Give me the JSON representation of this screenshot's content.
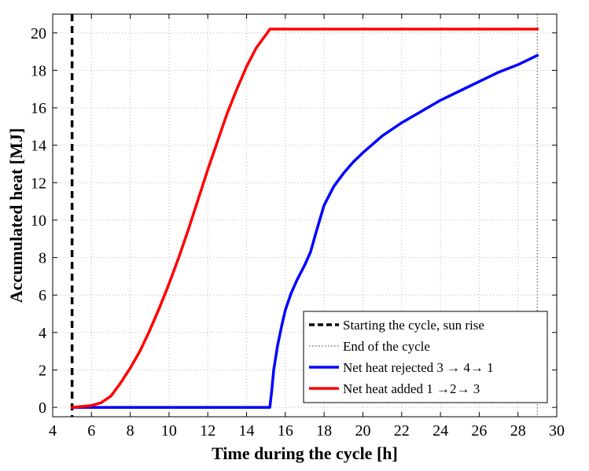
{
  "chart_data": {
    "type": "line",
    "title": "",
    "xlabel": "Time during the cycle  [h]",
    "ylabel": "Accumulated heat  [MJ]",
    "xlim": [
      4,
      30
    ],
    "ylim": [
      -0.5,
      21
    ],
    "xticks": [
      4,
      6,
      8,
      10,
      12,
      14,
      16,
      18,
      20,
      22,
      24,
      26,
      28,
      30
    ],
    "yticks": [
      0,
      2,
      4,
      6,
      8,
      10,
      12,
      14,
      16,
      18,
      20
    ],
    "grid": true,
    "legend_position": "bottom-right",
    "vlines": [
      {
        "name": "Starting the cycle, sun rise",
        "x": 5,
        "color": "#000000",
        "style": "dashed"
      },
      {
        "name": "End of the cycle",
        "x": 29,
        "color": "#777777",
        "style": "dotted"
      }
    ],
    "series": [
      {
        "name": "Net heat rejected  3 → 4→ 1",
        "color": "#0000ff",
        "x": [
          5,
          6,
          8,
          10,
          12,
          14,
          15.2,
          15.3,
          15.4,
          15.6,
          15.8,
          16,
          16.3,
          16.6,
          17,
          17.3,
          17.6,
          18,
          18.5,
          19,
          19.5,
          20,
          21,
          22,
          23,
          24,
          25,
          26,
          27,
          28,
          29
        ],
        "y": [
          0,
          0,
          0,
          0,
          0,
          0,
          0,
          0.9,
          2.0,
          3.3,
          4.3,
          5.2,
          6.1,
          6.8,
          7.6,
          8.3,
          9.4,
          10.8,
          11.8,
          12.5,
          13.1,
          13.6,
          14.5,
          15.2,
          15.8,
          16.4,
          16.9,
          17.4,
          17.9,
          18.3,
          18.8
        ]
      },
      {
        "name": "Net heat added  1 →2→ 3",
        "color": "#ff0000",
        "x": [
          5,
          6,
          6.5,
          7,
          7.5,
          8,
          8.5,
          9,
          9.5,
          10,
          10.5,
          11,
          11.5,
          12,
          12.5,
          13,
          13.5,
          14,
          14.5,
          15,
          15.2,
          16,
          18,
          20,
          22,
          24,
          26,
          28,
          29
        ],
        "y": [
          0,
          0.1,
          0.25,
          0.6,
          1.3,
          2.1,
          3.0,
          4.1,
          5.3,
          6.6,
          8.0,
          9.5,
          11.1,
          12.7,
          14.2,
          15.7,
          17.0,
          18.2,
          19.2,
          19.9,
          20.2,
          20.2,
          20.2,
          20.2,
          20.2,
          20.2,
          20.2,
          20.2,
          20.2
        ]
      }
    ]
  }
}
